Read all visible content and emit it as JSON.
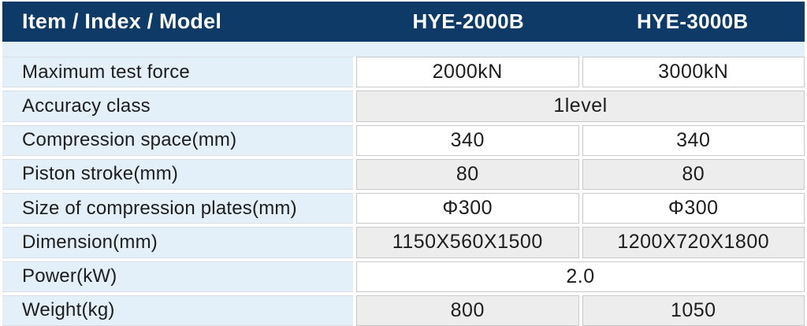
{
  "table": {
    "header": {
      "item_label": "Item / Index / Model",
      "columns": [
        "HYE-2000B",
        "HYE-3000B"
      ]
    },
    "rows": [
      {
        "label": "Maximum test force",
        "values": [
          "2000kN",
          "3000kN"
        ],
        "span": false,
        "shade": "white"
      },
      {
        "label": "Accuracy class",
        "values": [
          "1level"
        ],
        "span": true,
        "shade": "gray"
      },
      {
        "label": "Compression space(mm)",
        "values": [
          "340",
          "340"
        ],
        "span": false,
        "shade": "white"
      },
      {
        "label": "Piston stroke(mm)",
        "values": [
          "80",
          "80"
        ],
        "span": false,
        "shade": "gray"
      },
      {
        "label": "Size of compression plates(mm)",
        "values": [
          "Φ300",
          "Φ300"
        ],
        "span": false,
        "shade": "white"
      },
      {
        "label": "Dimension(mm)",
        "values": [
          "1150X560X1500",
          "1200X720X1800"
        ],
        "span": false,
        "shade": "gray"
      },
      {
        "label": "Power(kW)",
        "values": [
          "2.0"
        ],
        "span": true,
        "shade": "white"
      },
      {
        "label": "Weight(kg)",
        "values": [
          "800",
          "1050"
        ],
        "span": false,
        "shade": "gray"
      }
    ],
    "colors": {
      "header_bg": "#0d3a66",
      "header_text": "#ffffff",
      "label_bg": "#e3eff9",
      "cell_white": "#ffffff",
      "cell_gray": "#ededed",
      "border": "#c9c9c9",
      "text": "#1d1d1d"
    }
  }
}
